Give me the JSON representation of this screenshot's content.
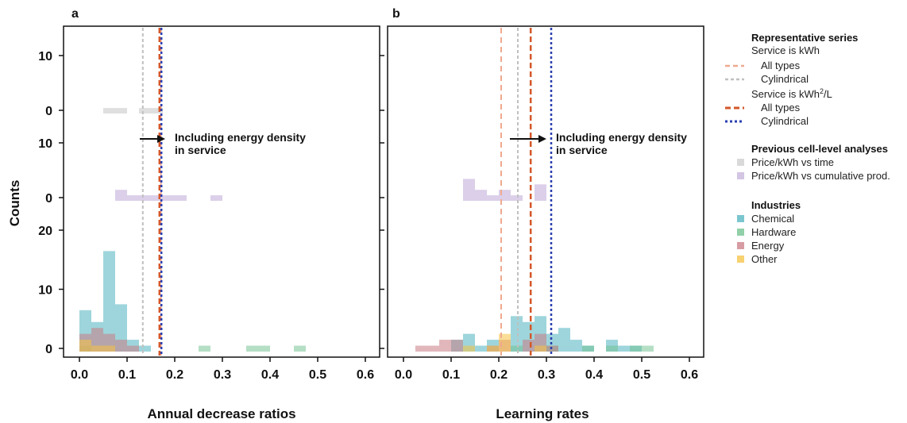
{
  "panels": [
    {
      "letter": "a",
      "xlabel": "Annual decrease ratios"
    },
    {
      "letter": "b",
      "xlabel": "Learning rates"
    }
  ],
  "ylabel": "Counts",
  "annotation": {
    "line1": "Including energy density",
    "line2": "in service"
  },
  "legend": {
    "rep_title": "Representative series",
    "kwh_title": "Service is kWh",
    "kwh_all": "All types",
    "kwh_cyl": "Cylindrical",
    "kwh2_title_main": "Service is kWh",
    "kwh2_title_sup": "2",
    "kwh2_title_end": "/L",
    "kwh2_all": "All types",
    "kwh2_cyl": "Cylindrical",
    "prev_title": "Previous cell-level analyses",
    "prev_time": "Price/kWh vs time",
    "prev_cum": "Price/kWh vs cumulative prod.",
    "ind_title": "Industries",
    "ind_items": [
      "Chemical",
      "Hardware",
      "Energy",
      "Other"
    ]
  },
  "colors": {
    "chemical": "#4fb3bf",
    "hardware": "#6cc08b",
    "energy": "#c97b84",
    "other": "#f5c242",
    "prev_time": "#c9c9c9",
    "prev_cum": "#c8b6dd",
    "kwh_all": "#f0a98f",
    "kwh_cyl": "#c0c0c0",
    "kwh2_all": "#d4572a",
    "kwh2_cyl": "#2a3fb0"
  },
  "chart_data": [
    {
      "type": "bar",
      "title": "a",
      "xlabel": "Annual decrease ratios",
      "ylabel": "Counts",
      "xlim": [
        0.0,
        0.6
      ],
      "xticks": [
        "0.0",
        "0.1",
        "0.2",
        "0.3",
        "0.4",
        "0.5",
        "0.6"
      ],
      "bin_width": 0.025,
      "subplots": [
        {
          "name": "Previous cell-level analyses: Price/kWh vs time",
          "ylim": [
            0,
            13
          ],
          "yticks": [
            "0",
            "10"
          ],
          "series": [
            {
              "name": "Price/kWh vs time",
              "bins": [
                [
                  0.05,
                  1
                ],
                [
                  0.075,
                  1
                ],
                [
                  0.125,
                  1
                ],
                [
                  0.15,
                  1
                ]
              ]
            }
          ]
        },
        {
          "name": "Previous cell-level analyses: Price/kWh vs cumulative prod.",
          "ylim": [
            0,
            13
          ],
          "yticks": [
            "0",
            "10"
          ],
          "series": [
            {
              "name": "Price/kWh vs cumulative prod.",
              "bins": [
                [
                  0.075,
                  2
                ],
                [
                  0.1,
                  1
                ],
                [
                  0.125,
                  1
                ],
                [
                  0.15,
                  1
                ],
                [
                  0.175,
                  1
                ],
                [
                  0.2,
                  1
                ],
                [
                  0.275,
                  1
                ]
              ]
            }
          ]
        },
        {
          "name": "Industries",
          "ylim": [
            0,
            22
          ],
          "yticks": [
            "0",
            "10",
            "20"
          ],
          "series": [
            {
              "name": "Chemical",
              "bins": [
                [
                  0.0,
                  7
                ],
                [
                  0.025,
                  5
                ],
                [
                  0.05,
                  17
                ],
                [
                  0.075,
                  8
                ],
                [
                  0.1,
                  2
                ],
                [
                  0.125,
                  1
                ]
              ]
            },
            {
              "name": "Hardware",
              "bins": [
                [
                  0.0,
                  1
                ],
                [
                  0.25,
                  1
                ],
                [
                  0.35,
                  1
                ],
                [
                  0.375,
                  1
                ],
                [
                  0.45,
                  1
                ]
              ]
            },
            {
              "name": "Energy",
              "bins": [
                [
                  0.0,
                  3
                ],
                [
                  0.025,
                  4
                ],
                [
                  0.05,
                  3
                ],
                [
                  0.075,
                  2
                ],
                [
                  0.1,
                  1
                ]
              ]
            },
            {
              "name": "Other",
              "bins": [
                [
                  0.0,
                  2
                ],
                [
                  0.025,
                  1
                ],
                [
                  0.05,
                  1
                ]
              ]
            }
          ]
        }
      ],
      "reference_lines": [
        {
          "name": "Service is kWh: All types",
          "x": 0.171
        },
        {
          "name": "Service is kWh: Cylindrical",
          "x": 0.133
        },
        {
          "name": "Service is kWh2/L: All types",
          "x": 0.168
        },
        {
          "name": "Service is kWh2/L: Cylindrical",
          "x": 0.172
        }
      ]
    },
    {
      "type": "bar",
      "title": "b",
      "xlabel": "Learning rates",
      "ylabel": "Counts",
      "xlim": [
        0.0,
        0.6
      ],
      "xticks": [
        "0.0",
        "0.1",
        "0.2",
        "0.3",
        "0.4",
        "0.5",
        "0.6"
      ],
      "bin_width": 0.025,
      "subplots": [
        {
          "name": "Previous cell-level analyses: Price/kWh vs time",
          "ylim": [
            0,
            13
          ],
          "series": [
            {
              "name": "Price/kWh vs time",
              "bins": []
            }
          ]
        },
        {
          "name": "Previous cell-level analyses: Price/kWh vs cumulative prod.",
          "ylim": [
            0,
            13
          ],
          "series": [
            {
              "name": "Price/kWh vs cumulative prod.",
              "bins": [
                [
                  0.125,
                  4
                ],
                [
                  0.15,
                  2
                ],
                [
                  0.175,
                  1
                ],
                [
                  0.2,
                  2
                ],
                [
                  0.225,
                  1
                ],
                [
                  0.275,
                  3
                ]
              ]
            }
          ]
        },
        {
          "name": "Industries",
          "ylim": [
            0,
            22
          ],
          "series": [
            {
              "name": "Chemical",
              "bins": [
                [
                  0.1,
                  2
                ],
                [
                  0.125,
                  3
                ],
                [
                  0.15,
                  1
                ],
                [
                  0.175,
                  2
                ],
                [
                  0.225,
                  6
                ],
                [
                  0.25,
                  5
                ],
                [
                  0.275,
                  6
                ],
                [
                  0.3,
                  3
                ],
                [
                  0.325,
                  4
                ],
                [
                  0.35,
                  2
                ],
                [
                  0.375,
                  1
                ],
                [
                  0.425,
                  2
                ],
                [
                  0.45,
                  1
                ],
                [
                  0.475,
                  1
                ]
              ]
            },
            {
              "name": "Hardware",
              "bins": [
                [
                  0.225,
                  1
                ],
                [
                  0.3,
                  1
                ],
                [
                  0.375,
                  1
                ],
                [
                  0.425,
                  1
                ],
                [
                  0.475,
                  1
                ],
                [
                  0.5,
                  1
                ]
              ]
            },
            {
              "name": "Energy",
              "bins": [
                [
                  0.025,
                  1
                ],
                [
                  0.05,
                  1
                ],
                [
                  0.075,
                  2
                ],
                [
                  0.1,
                  2
                ],
                [
                  0.175,
                  1
                ],
                [
                  0.2,
                  2
                ],
                [
                  0.25,
                  2
                ],
                [
                  0.275,
                  3
                ],
                [
                  0.3,
                  1
                ]
              ]
            },
            {
              "name": "Other",
              "bins": [
                [
                  0.125,
                  1
                ],
                [
                  0.175,
                  1
                ],
                [
                  0.2,
                  3
                ],
                [
                  0.275,
                  1
                ]
              ]
            }
          ]
        }
      ],
      "reference_lines": [
        {
          "name": "Service is kWh: All types",
          "x": 0.205
        },
        {
          "name": "Service is kWh: Cylindrical",
          "x": 0.24
        },
        {
          "name": "Service is kWh2/L: All types",
          "x": 0.267
        },
        {
          "name": "Service is kWh2/L: Cylindrical",
          "x": 0.31
        }
      ]
    }
  ]
}
